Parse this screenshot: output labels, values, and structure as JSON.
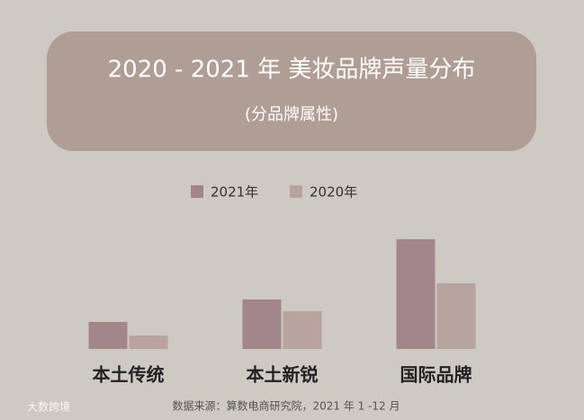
{
  "chart_data": {
    "type": "bar",
    "title": "2020 -  2021 年 美妆品牌声量分布",
    "subtitle": "(分品牌属性)",
    "categories": [
      "本土传统",
      "本土新锐",
      "国际品牌"
    ],
    "series": [
      {
        "name": "2021年",
        "color": "#a3868a",
        "values": [
          30,
          55,
          122
        ]
      },
      {
        "name": "2020年",
        "color": "#b8a39f",
        "values": [
          15,
          42,
          73
        ]
      }
    ],
    "ylim": [
      0,
      130
    ],
    "source": "数据来源：算数电商研究院，2021 年 1 -12 月",
    "watermark": "大数跨境"
  }
}
